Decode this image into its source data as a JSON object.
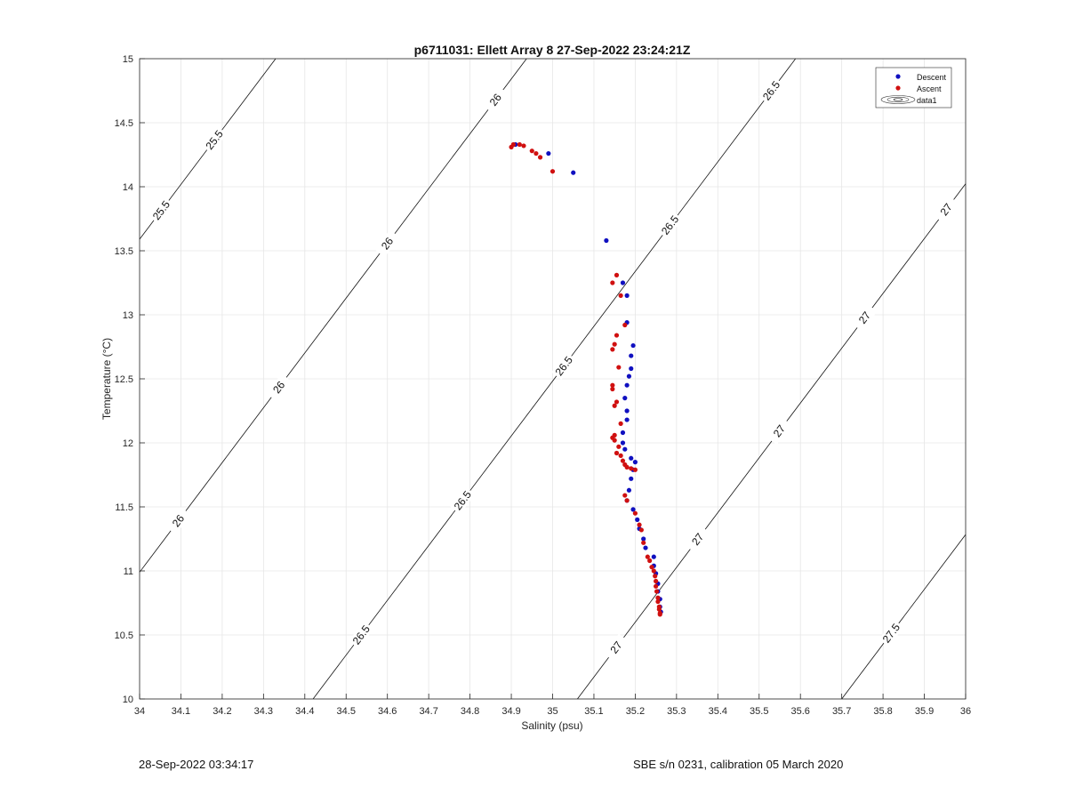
{
  "chart_data": {
    "type": "scatter",
    "title": "p6711031: Ellett Array 8 27-Sep-2022 23:24:21Z",
    "xlabel": "Salinity (psu)",
    "ylabel": "Temperature (°C)",
    "xlim": [
      34,
      36
    ],
    "ylim": [
      10,
      15
    ],
    "xticks": [
      "34",
      "34.1",
      "34.2",
      "34.3",
      "34.4",
      "34.5",
      "34.6",
      "34.7",
      "34.8",
      "34.9",
      "35",
      "35.1",
      "35.2",
      "35.3",
      "35.4",
      "35.5",
      "35.6",
      "35.7",
      "35.8",
      "35.9",
      "36"
    ],
    "yticks": [
      "10",
      "10.5",
      "11",
      "11.5",
      "12",
      "12.5",
      "13",
      "13.5",
      "14",
      "14.5",
      "15"
    ],
    "grid": true,
    "legend_position": "top-right",
    "legend": [
      "Descent",
      "Ascent",
      "data1"
    ],
    "series": [
      {
        "name": "Descent",
        "color": "#1010c0",
        "points": [
          [
            34.91,
            14.33
          ],
          [
            34.99,
            14.26
          ],
          [
            35.05,
            14.11
          ],
          [
            35.13,
            13.58
          ],
          [
            35.17,
            13.25
          ],
          [
            35.18,
            13.15
          ],
          [
            35.18,
            12.94
          ],
          [
            35.195,
            12.76
          ],
          [
            35.19,
            12.68
          ],
          [
            35.19,
            12.58
          ],
          [
            35.185,
            12.52
          ],
          [
            35.18,
            12.45
          ],
          [
            35.175,
            12.35
          ],
          [
            35.18,
            12.25
          ],
          [
            35.18,
            12.18
          ],
          [
            35.17,
            12.08
          ],
          [
            35.17,
            12.0
          ],
          [
            35.175,
            11.95
          ],
          [
            35.19,
            11.88
          ],
          [
            35.2,
            11.85
          ],
          [
            35.195,
            11.79
          ],
          [
            35.19,
            11.72
          ],
          [
            35.185,
            11.63
          ],
          [
            35.18,
            11.55
          ],
          [
            35.195,
            11.48
          ],
          [
            35.205,
            11.4
          ],
          [
            35.21,
            11.33
          ],
          [
            35.22,
            11.25
          ],
          [
            35.225,
            11.18
          ],
          [
            35.245,
            11.11
          ],
          [
            35.245,
            11.04
          ],
          [
            35.25,
            10.98
          ],
          [
            35.255,
            10.9
          ],
          [
            35.255,
            10.84
          ],
          [
            35.26,
            10.78
          ],
          [
            35.26,
            10.72
          ],
          [
            35.262,
            10.68
          ]
        ]
      },
      {
        "name": "Ascent",
        "color": "#d01010",
        "points": [
          [
            34.9,
            14.31
          ],
          [
            34.905,
            14.33
          ],
          [
            34.92,
            14.33
          ],
          [
            34.93,
            14.32
          ],
          [
            34.95,
            14.28
          ],
          [
            34.96,
            14.26
          ],
          [
            34.97,
            14.23
          ],
          [
            35.0,
            14.12
          ],
          [
            35.155,
            13.31
          ],
          [
            35.145,
            13.25
          ],
          [
            35.165,
            13.15
          ],
          [
            35.175,
            12.92
          ],
          [
            35.155,
            12.84
          ],
          [
            35.15,
            12.77
          ],
          [
            35.145,
            12.73
          ],
          [
            35.16,
            12.59
          ],
          [
            35.145,
            12.45
          ],
          [
            35.145,
            12.42
          ],
          [
            35.155,
            12.32
          ],
          [
            35.15,
            12.29
          ],
          [
            35.165,
            12.15
          ],
          [
            35.15,
            12.06
          ],
          [
            35.145,
            12.04
          ],
          [
            35.15,
            12.02
          ],
          [
            35.16,
            11.97
          ],
          [
            35.155,
            11.92
          ],
          [
            35.165,
            11.9
          ],
          [
            35.17,
            11.86
          ],
          [
            35.175,
            11.83
          ],
          [
            35.18,
            11.81
          ],
          [
            35.19,
            11.8
          ],
          [
            35.2,
            11.79
          ],
          [
            35.175,
            11.59
          ],
          [
            35.18,
            11.55
          ],
          [
            35.2,
            11.45
          ],
          [
            35.21,
            11.36
          ],
          [
            35.215,
            11.32
          ],
          [
            35.22,
            11.22
          ],
          [
            35.23,
            11.11
          ],
          [
            35.235,
            11.08
          ],
          [
            35.24,
            11.03
          ],
          [
            35.245,
            11.0
          ],
          [
            35.248,
            10.96
          ],
          [
            35.25,
            10.92
          ],
          [
            35.25,
            10.88
          ],
          [
            35.252,
            10.84
          ],
          [
            35.255,
            10.79
          ],
          [
            35.255,
            10.76
          ],
          [
            35.258,
            10.72
          ],
          [
            35.258,
            10.7
          ],
          [
            35.26,
            10.67
          ],
          [
            35.26,
            10.66
          ]
        ]
      }
    ],
    "isopycnals": [
      {
        "value": 25.5,
        "labels": [
          "25.5",
          "25.5"
        ]
      },
      {
        "value": 26,
        "labels": [
          "26",
          "26",
          "26",
          "26"
        ]
      },
      {
        "value": 26.5,
        "labels": [
          "26.5",
          "26.5",
          "26.5",
          "26.5",
          "26.5"
        ]
      },
      {
        "value": 27,
        "labels": [
          "27",
          "27",
          "27",
          "27",
          "27"
        ]
      },
      {
        "value": 27.5,
        "labels": [
          "27.5"
        ]
      }
    ]
  },
  "footer": {
    "timestamp": "28-Sep-2022 03:34:17",
    "calibration": "SBE s/n 0231, calibration 05 March 2020"
  }
}
